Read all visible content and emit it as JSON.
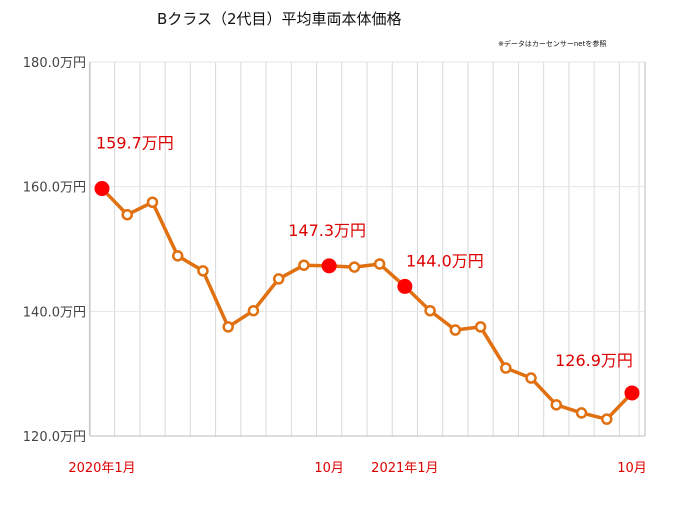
{
  "chart_data": {
    "type": "line",
    "title": "Bクラス（2代目）平均車両本体価格",
    "note": "※データはカーセンサーnetを参照",
    "xlabel": "",
    "ylabel": "",
    "ylim": [
      120,
      180
    ],
    "yticks": [
      120,
      140,
      160,
      180
    ],
    "ytick_labels": [
      "120.0万円",
      "140.0万円",
      "160.0万円",
      "180.0万円"
    ],
    "x": [
      "2020-01",
      "2020-02",
      "2020-03",
      "2020-04",
      "2020-05",
      "2020-06",
      "2020-07",
      "2020-08",
      "2020-09",
      "2020-10",
      "2020-11",
      "2020-12",
      "2021-01",
      "2021-02",
      "2021-03",
      "2021-04",
      "2021-05",
      "2021-06",
      "2021-07",
      "2021-08",
      "2021-09",
      "2021-10"
    ],
    "xtick_labels": [
      {
        "index": 0,
        "label": "2020年1月"
      },
      {
        "index": 9,
        "label": "10月"
      },
      {
        "index": 12,
        "label": "2021年1月"
      },
      {
        "index": 21,
        "label": "10月"
      }
    ],
    "series": [
      {
        "name": "平均車両本体価格",
        "color": "#e07010",
        "values": [
          159.7,
          155.5,
          157.5,
          148.9,
          146.5,
          137.5,
          140.1,
          145.2,
          147.4,
          147.3,
          147.1,
          147.6,
          144.0,
          140.1,
          137.0,
          137.5,
          130.9,
          129.3,
          125.0,
          123.7,
          122.7,
          126.9
        ]
      }
    ],
    "highlights": [
      {
        "index": 0,
        "label": "159.7万円"
      },
      {
        "index": 9,
        "label": "147.3万円"
      },
      {
        "index": 12,
        "label": "144.0万円"
      },
      {
        "index": 21,
        "label": "126.9万円"
      }
    ],
    "highlight_color": "#ff0000",
    "grid": true,
    "legend": "none"
  }
}
